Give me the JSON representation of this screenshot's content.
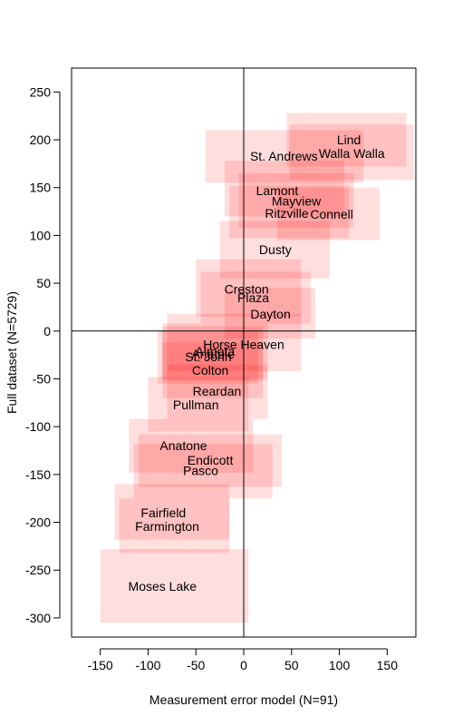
{
  "chart_data": {
    "type": "scatter",
    "title": "",
    "xlabel": "Measurement error model (N=91)",
    "ylabel": "Full dataset (N=5729)",
    "xlim": [
      -180,
      180
    ],
    "ylim": [
      -320,
      275
    ],
    "x_ticks": [
      -150,
      -100,
      -50,
      0,
      50,
      100,
      150
    ],
    "y_ticks": [
      -300,
      -250,
      -200,
      -150,
      -100,
      -50,
      0,
      50,
      100,
      150,
      200,
      250
    ],
    "reference_lines": {
      "x": 0,
      "y": 0
    },
    "box_color": "#ff0000",
    "points": [
      {
        "label": "Lind",
        "x": 110,
        "y": 200,
        "x_range": [
          45,
          170
        ],
        "y_range": [
          172,
          228
        ]
      },
      {
        "label": "Walla Walla",
        "x": 113,
        "y": 186,
        "x_range": [
          48,
          178
        ],
        "y_range": [
          158,
          216
        ]
      },
      {
        "label": "St. Andrews",
        "x": 42,
        "y": 183,
        "x_range": [
          -40,
          125
        ],
        "y_range": [
          155,
          210
        ]
      },
      {
        "label": "Lamont",
        "x": 35,
        "y": 147,
        "x_range": [
          -20,
          105
        ],
        "y_range": [
          120,
          178
        ]
      },
      {
        "label": "Mayview",
        "x": 55,
        "y": 136,
        "x_range": [
          -5,
          115
        ],
        "y_range": [
          108,
          165
        ]
      },
      {
        "label": "Ritzville",
        "x": 45,
        "y": 123,
        "x_range": [
          -15,
          110
        ],
        "y_range": [
          97,
          152
        ]
      },
      {
        "label": "Connell",
        "x": 92,
        "y": 122,
        "x_range": [
          35,
          142
        ],
        "y_range": [
          95,
          150
        ]
      },
      {
        "label": "Dusty",
        "x": 33,
        "y": 85,
        "x_range": [
          -25,
          90
        ],
        "y_range": [
          55,
          115
        ]
      },
      {
        "label": "Creston",
        "x": 3,
        "y": 44,
        "x_range": [
          -50,
          60
        ],
        "y_range": [
          15,
          75
        ]
      },
      {
        "label": "Plaza",
        "x": 10,
        "y": 35,
        "x_range": [
          -45,
          70
        ],
        "y_range": [
          8,
          62
        ]
      },
      {
        "label": "Dayton",
        "x": 28,
        "y": 18,
        "x_range": [
          -20,
          75
        ],
        "y_range": [
          -8,
          45
        ]
      },
      {
        "label": "Horse Heaven",
        "x": 0,
        "y": -14,
        "x_range": [
          -80,
          60
        ],
        "y_range": [
          -42,
          18
        ]
      },
      {
        "label": "Almota",
        "x": -30,
        "y": -21,
        "x_range": [
          -85,
          25
        ],
        "y_range": [
          -50,
          8
        ]
      },
      {
        "label": "Anatole",
        "x": -32,
        "y": -24,
        "x_range": [
          -85,
          20
        ],
        "y_range": [
          -52,
          5
        ]
      },
      {
        "label": "St. John",
        "x": -37,
        "y": -27,
        "x_range": [
          -90,
          15
        ],
        "y_range": [
          -55,
          0
        ]
      },
      {
        "label": "Colton",
        "x": -35,
        "y": -41,
        "x_range": [
          -85,
          20
        ],
        "y_range": [
          -70,
          -12
        ]
      },
      {
        "label": "Reardan",
        "x": -28,
        "y": -63,
        "x_range": [
          -80,
          25
        ],
        "y_range": [
          -92,
          -35
        ]
      },
      {
        "label": "Pullman",
        "x": -50,
        "y": -77,
        "x_range": [
          -100,
          5
        ],
        "y_range": [
          -105,
          -48
        ]
      },
      {
        "label": "Anatone",
        "x": -63,
        "y": -120,
        "x_range": [
          -120,
          10
        ],
        "y_range": [
          -148,
          -92
        ]
      },
      {
        "label": "Endicott",
        "x": -35,
        "y": -135,
        "x_range": [
          -110,
          40
        ],
        "y_range": [
          -163,
          -108
        ]
      },
      {
        "label": "Pasco",
        "x": -45,
        "y": -146,
        "x_range": [
          -115,
          30
        ],
        "y_range": [
          -175,
          -118
        ]
      },
      {
        "label": "Fairfield",
        "x": -84,
        "y": -190,
        "x_range": [
          -135,
          -15
        ],
        "y_range": [
          -218,
          -160
        ]
      },
      {
        "label": "Farmington",
        "x": -80,
        "y": -204,
        "x_range": [
          -130,
          -15
        ],
        "y_range": [
          -232,
          -175
        ]
      },
      {
        "label": "Moses Lake",
        "x": -85,
        "y": -267,
        "x_range": [
          -150,
          5
        ],
        "y_range": [
          -305,
          -228
        ]
      }
    ]
  }
}
